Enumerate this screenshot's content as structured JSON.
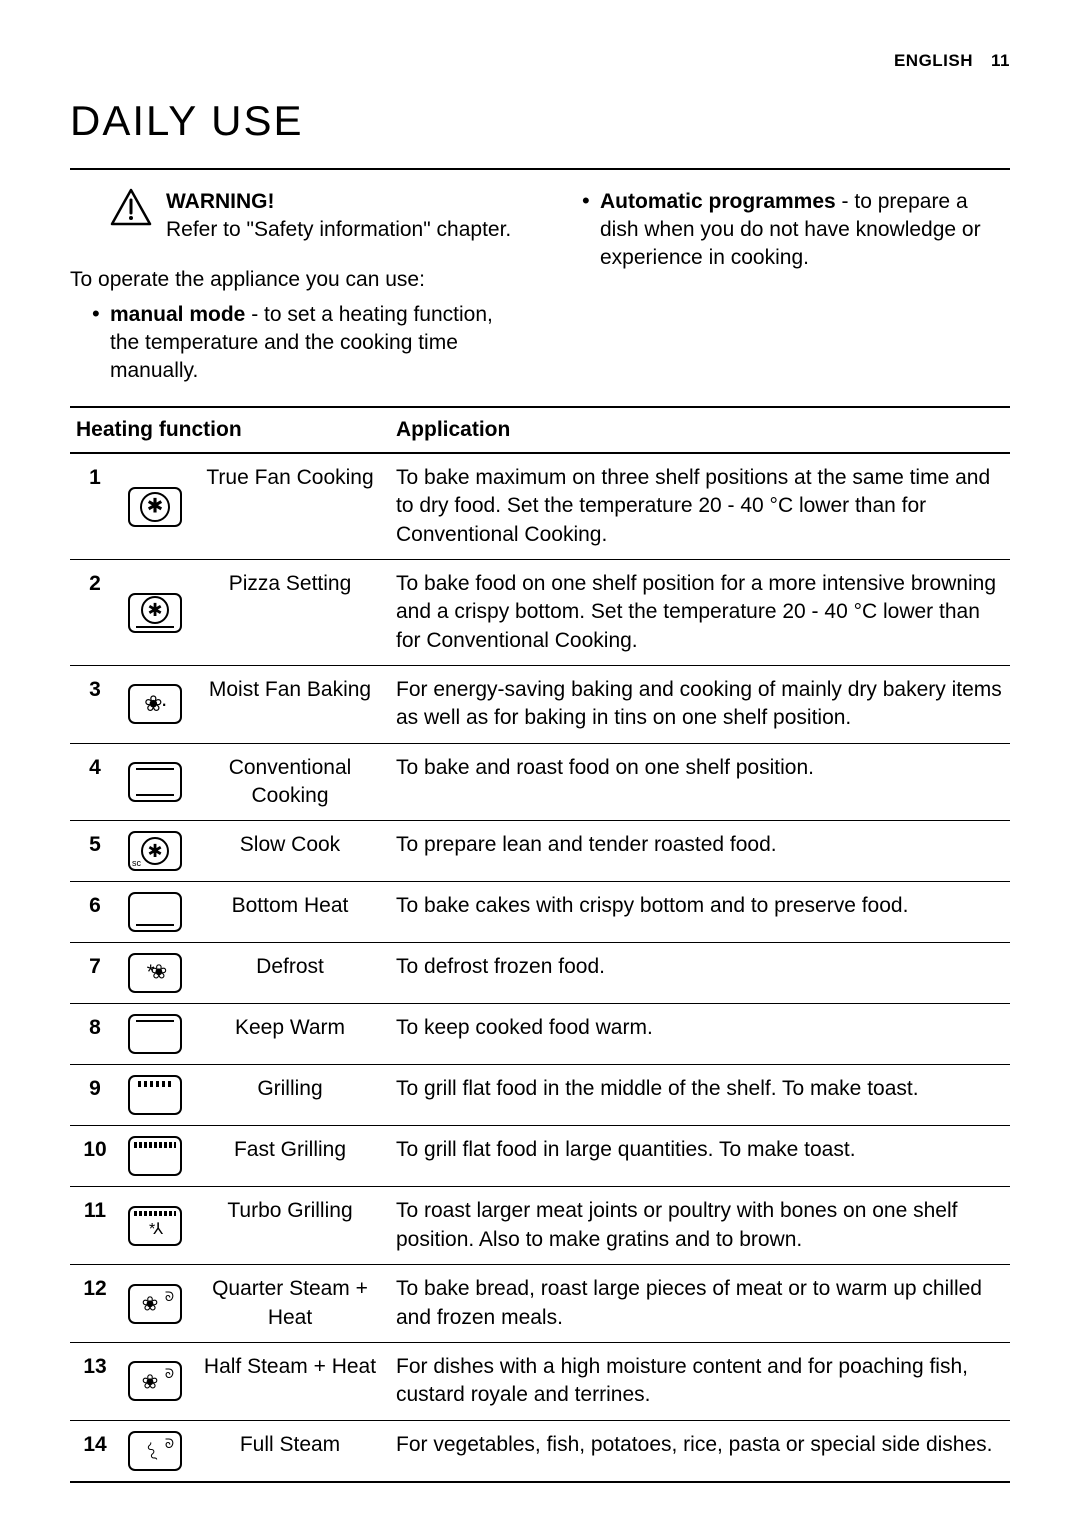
{
  "header": {
    "lang": "ENGLISH",
    "page": "11"
  },
  "section_title": "DAILY USE",
  "warning": {
    "label": "WARNING!",
    "text": "Refer to \"Safety information\" chapter."
  },
  "intro": "To operate the appliance you can use:",
  "modes": [
    {
      "bold": "manual mode",
      "rest": " - to set a heating function, the temperature and the cooking time manually."
    },
    {
      "bold": "Automatic programmes",
      "rest": " - to prepare a dish when you do not have knowledge or experience in cooking."
    }
  ],
  "table": {
    "header_function": "Heating function",
    "header_application": "Application",
    "rows": [
      {
        "n": "1",
        "icon": "fan",
        "name": "True Fan Cooking",
        "app": "To bake maximum on three shelf positions at the same time and to dry food. Set the temperature 20 - 40 °C lower than for Conventional Cooking."
      },
      {
        "n": "2",
        "icon": "pizza",
        "name": "Pizza Setting",
        "app": "To bake food on one shelf position for a more intensive browning and a crispy bottom. Set the temperature 20 - 40 °C lower than for Conventional Cooking."
      },
      {
        "n": "3",
        "icon": "moist",
        "name": "Moist Fan Baking",
        "app": "For energy-saving baking and cooking of mainly dry bakery items as well as for baking in tins on one shelf position."
      },
      {
        "n": "4",
        "icon": "conv",
        "name": "Conventional Cooking",
        "app": "To bake and roast food on one shelf position."
      },
      {
        "n": "5",
        "icon": "slow",
        "name": "Slow Cook",
        "app": "To prepare lean and tender roasted food."
      },
      {
        "n": "6",
        "icon": "bottom",
        "name": "Bottom Heat",
        "app": "To bake cakes with crispy bottom and to preserve food."
      },
      {
        "n": "7",
        "icon": "defrost",
        "name": "Defrost",
        "app": "To defrost frozen food."
      },
      {
        "n": "8",
        "icon": "keepwarm",
        "name": "Keep Warm",
        "app": "To keep cooked food warm."
      },
      {
        "n": "9",
        "icon": "grill",
        "name": "Grilling",
        "app": "To grill flat food in the middle of the shelf. To make toast."
      },
      {
        "n": "10",
        "icon": "fastgrill",
        "name": "Fast Grilling",
        "app": "To grill flat food in large quantities. To make toast."
      },
      {
        "n": "11",
        "icon": "turbo",
        "name": "Turbo Grilling",
        "app": "To roast larger meat joints or poultry with bones on one shelf position. Also to make gratins and to brown."
      },
      {
        "n": "12",
        "icon": "qsteam",
        "name": "Quarter Steam + Heat",
        "app": "To bake bread, roast large pieces of meat or to warm up chilled and frozen meals."
      },
      {
        "n": "13",
        "icon": "hsteam",
        "name": "Half Steam + Heat",
        "app": "For dishes with a high moisture content and for poaching fish, custard royale and terrines."
      },
      {
        "n": "14",
        "icon": "fsteam",
        "name": "Full Steam",
        "app": "For vegetables, fish, potatoes, rice, pasta or special side dishes."
      }
    ]
  }
}
